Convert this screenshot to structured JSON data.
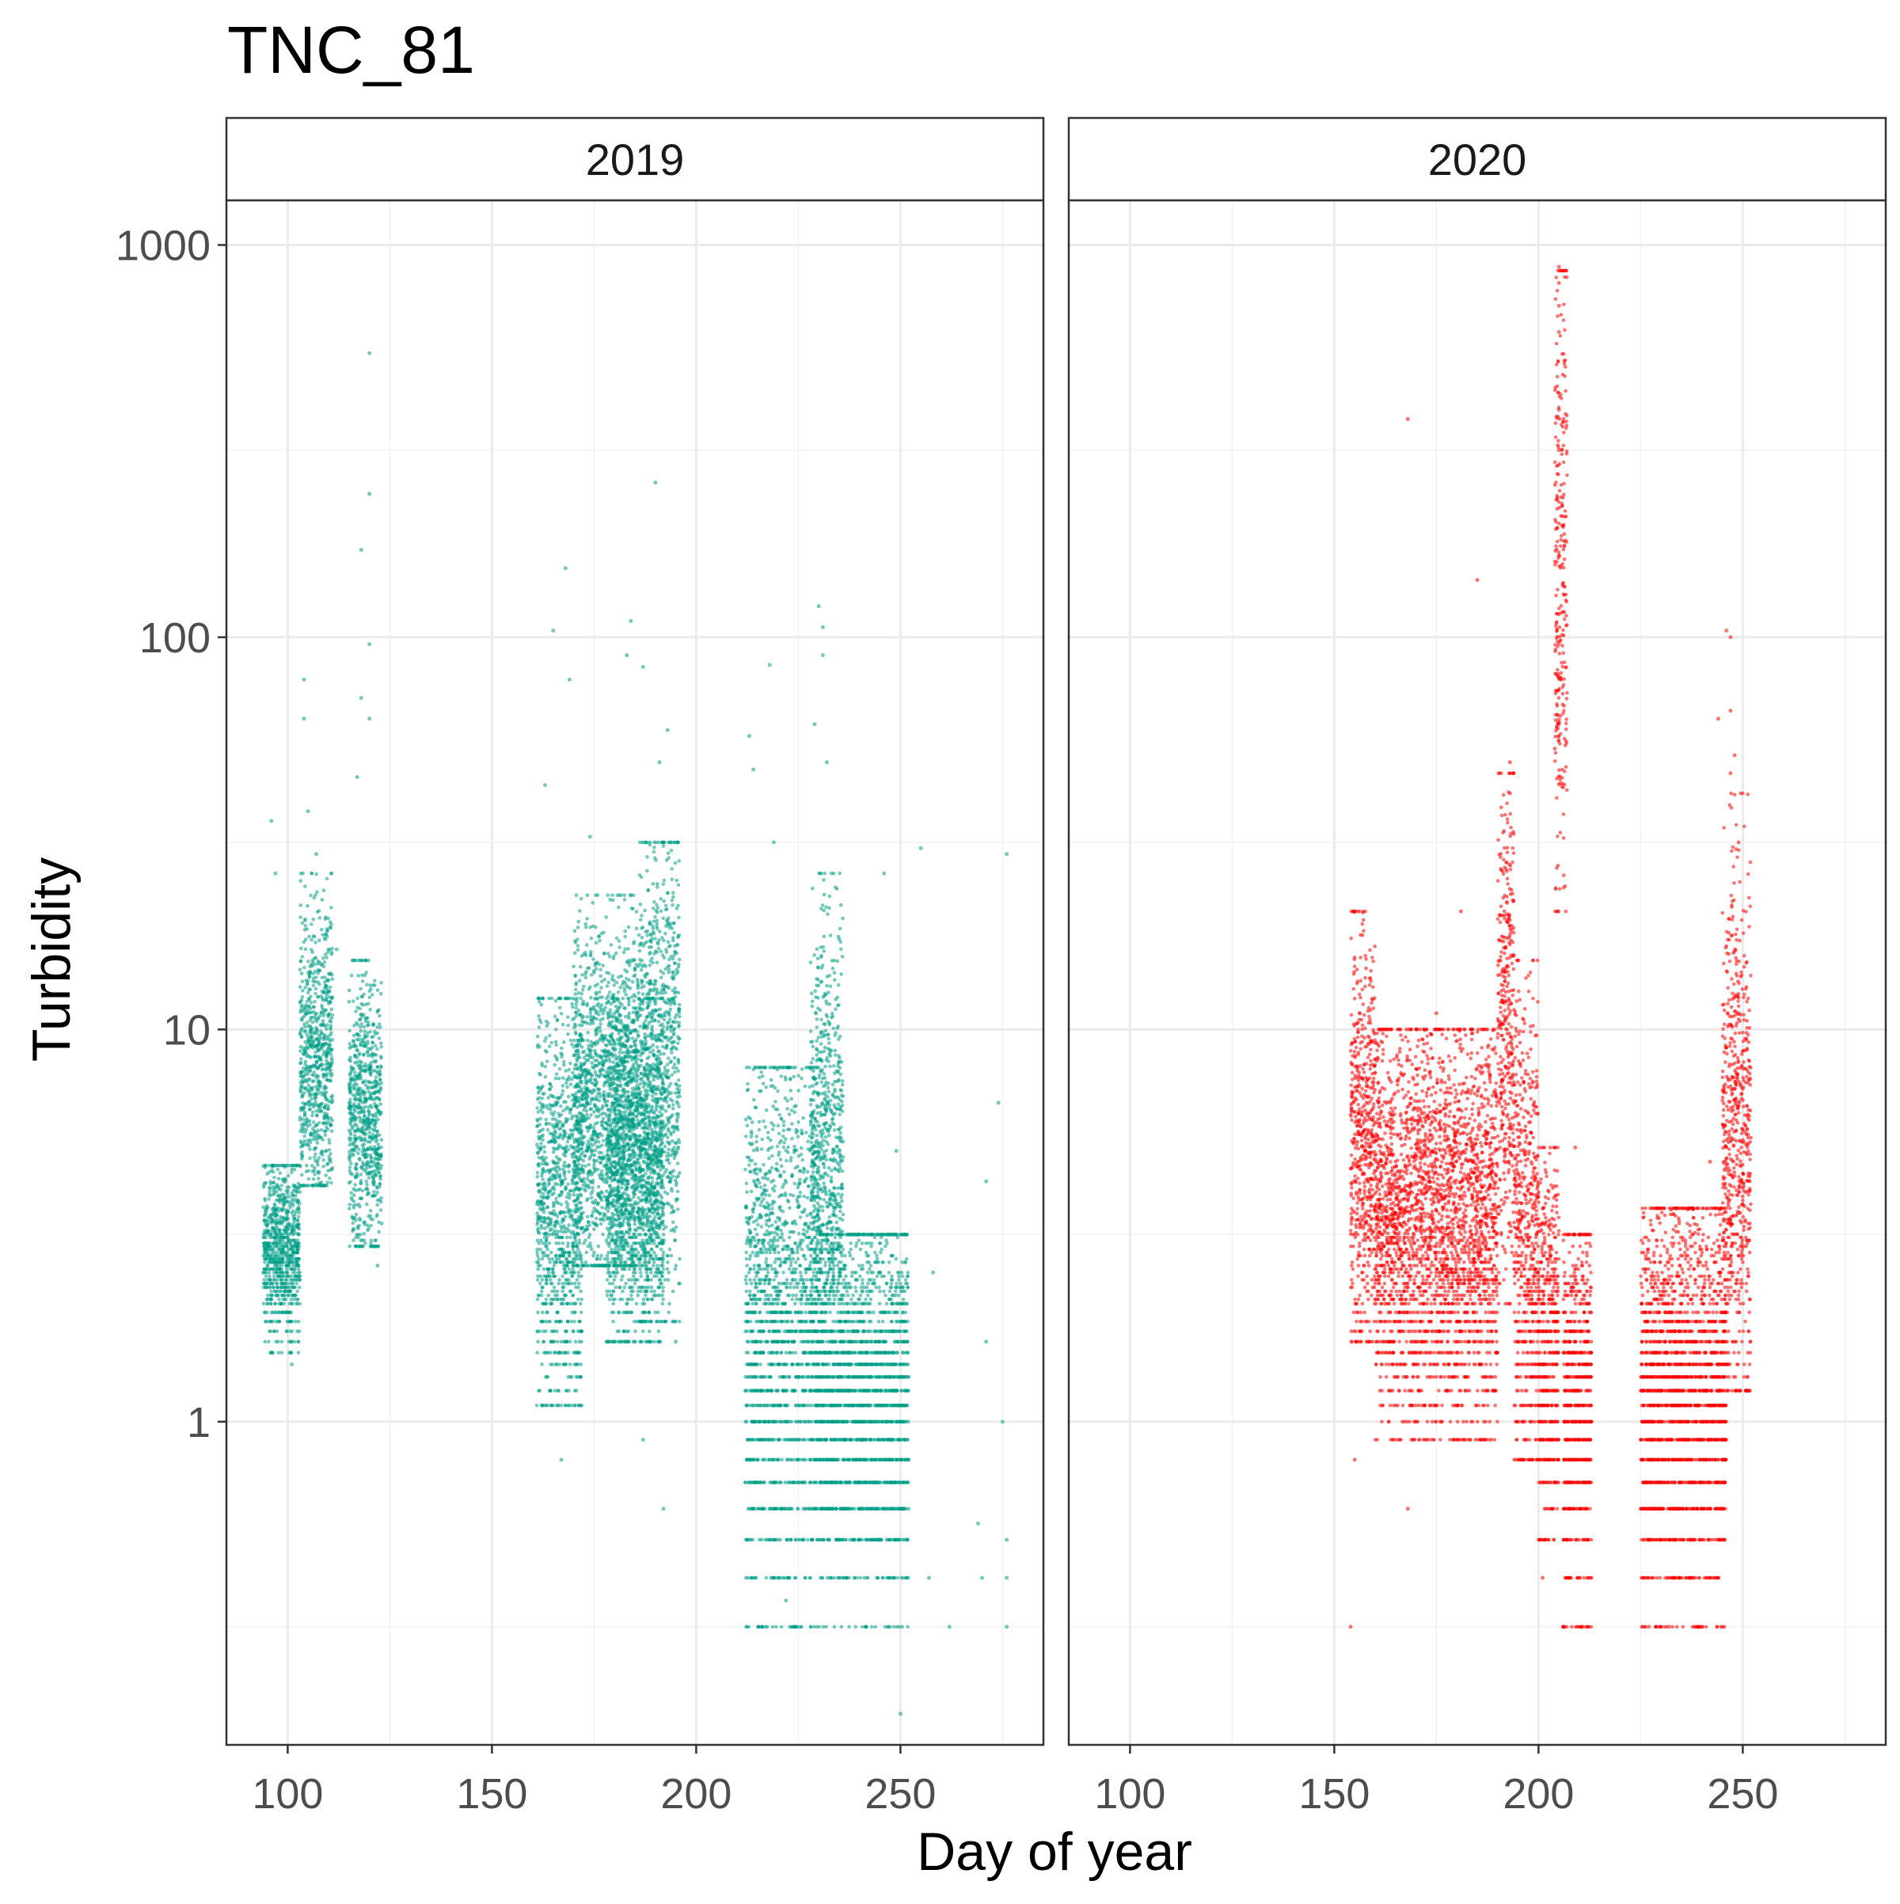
{
  "chart_data": {
    "type": "scatter",
    "title": "TNC_81",
    "xlabel": "Day of year",
    "ylabel": "Turbidity",
    "y_scale": "log10",
    "xlim": [
      85,
      285
    ],
    "ylim": [
      0.15,
      1300
    ],
    "x_ticks": [
      100,
      150,
      200,
      250
    ],
    "x_tick_labels": [
      "100",
      "150",
      "200",
      "250"
    ],
    "y_ticks": [
      1,
      10,
      100,
      1000
    ],
    "y_tick_labels": [
      "1",
      "10",
      "100",
      "1000"
    ],
    "grid": true,
    "legend": "none",
    "panels": [
      {
        "label": "2019",
        "color": "#009E86",
        "clusters": [
          {
            "x_range": [
              94,
              103
            ],
            "y_range": [
              1.5,
              4.5
            ],
            "center": 2.7
          },
          {
            "x_range": [
              103,
              111
            ],
            "y_range": [
              4.0,
              25
            ],
            "center": 8.5
          },
          {
            "x_range": [
              115,
              123
            ],
            "y_range": [
              2.8,
              15
            ],
            "center": 6.0
          },
          {
            "x_range": [
              161,
              172
            ],
            "y_range": [
              1.1,
              12
            ],
            "center": 3.5
          },
          {
            "x_range": [
              170,
              186
            ],
            "y_range": [
              2.5,
              22
            ],
            "center": 6.5
          },
          {
            "x_range": [
              178,
              192
            ],
            "y_range": [
              1.6,
              12
            ],
            "center": 4.2
          },
          {
            "x_range": [
              186,
              196
            ],
            "y_range": [
              1.8,
              30
            ],
            "center": 7.5
          },
          {
            "x_range": [
              212,
              230
            ],
            "y_range": [
              0.3,
              8
            ],
            "center": 1.8
          },
          {
            "x_range": [
              228,
              236
            ],
            "y_range": [
              1.2,
              25
            ],
            "center": 4.5
          },
          {
            "x_range": [
              230,
              252
            ],
            "y_range": [
              0.3,
              3
            ],
            "center": 1.2
          }
        ],
        "sparse_points": [
          [
            96,
            34
          ],
          [
            97,
            25
          ],
          [
            101,
            1.4
          ],
          [
            104,
            78
          ],
          [
            104,
            62
          ],
          [
            105,
            36
          ],
          [
            107,
            28
          ],
          [
            112,
            16
          ],
          [
            117,
            44
          ],
          [
            118,
            70
          ],
          [
            118,
            167
          ],
          [
            120,
            530
          ],
          [
            120,
            232
          ],
          [
            120,
            96
          ],
          [
            120,
            62
          ],
          [
            123,
            3.2
          ],
          [
            122,
            2.5
          ],
          [
            163,
            42
          ],
          [
            165,
            104
          ],
          [
            168,
            150
          ],
          [
            169,
            78
          ],
          [
            174,
            31
          ],
          [
            183,
            90
          ],
          [
            184,
            110
          ],
          [
            187,
            84
          ],
          [
            190,
            248
          ],
          [
            191,
            48
          ],
          [
            193,
            58
          ],
          [
            195,
            1.6
          ],
          [
            192,
            0.6
          ],
          [
            167,
            0.8
          ],
          [
            187,
            0.9
          ],
          [
            213,
            56
          ],
          [
            214,
            46
          ],
          [
            218,
            85
          ],
          [
            219,
            30
          ],
          [
            222,
            0.35
          ],
          [
            229,
            60
          ],
          [
            230,
            120
          ],
          [
            231,
            106
          ],
          [
            231,
            90
          ],
          [
            232,
            48
          ],
          [
            235,
            17
          ],
          [
            246,
            25
          ],
          [
            249,
            4.9
          ],
          [
            250,
            0.18
          ],
          [
            255,
            29
          ],
          [
            258,
            2.4
          ],
          [
            257,
            0.4
          ],
          [
            262,
            0.3
          ],
          [
            269,
            0.55
          ],
          [
            270,
            0.4
          ],
          [
            271,
            1.6
          ],
          [
            271,
            4.1
          ],
          [
            274,
            6.5
          ],
          [
            275,
            1.0
          ],
          [
            276,
            28
          ],
          [
            276,
            0.5
          ],
          [
            276,
            0.4
          ],
          [
            276,
            0.3
          ]
        ]
      },
      {
        "label": "2020",
        "color": "#FF0000",
        "clusters": [
          {
            "x_range": [
              154,
              160
            ],
            "y_range": [
              1.6,
              20
            ],
            "center": 5.0
          },
          {
            "x_range": [
              160,
              190
            ],
            "y_range": [
              0.9,
              10
            ],
            "center": 3.2
          },
          {
            "x_range": [
              190,
              194
            ],
            "y_range": [
              2.0,
              45
            ],
            "center": 10.0
          },
          {
            "x_range": [
              194,
              200
            ],
            "y_range": [
              0.8,
              15
            ],
            "center": 3.0
          },
          {
            "x_range": [
              200,
              205
            ],
            "y_range": [
              0.45,
              5
            ],
            "center": 1.6
          },
          {
            "x_range": [
              204,
              207
            ],
            "y_range": [
              20,
              860
            ],
            "center": 150
          },
          {
            "x_range": [
              206,
              213
            ],
            "y_range": [
              0.3,
              3
            ],
            "center": 1.1
          },
          {
            "x_range": [
              225,
              246
            ],
            "y_range": [
              0.3,
              3.5
            ],
            "center": 1.2
          },
          {
            "x_range": [
              245,
              252
            ],
            "y_range": [
              1.2,
              40
            ],
            "center": 5.0
          }
        ],
        "sparse_points": [
          [
            154,
            0.3
          ],
          [
            155,
            0.8
          ],
          [
            155,
            20
          ],
          [
            168,
            0.6
          ],
          [
            168,
            360
          ],
          [
            175,
            11
          ],
          [
            181,
            20
          ],
          [
            182,
            0.9
          ],
          [
            184,
            5
          ],
          [
            185,
            140
          ],
          [
            193,
            48
          ],
          [
            193,
            40
          ],
          [
            201,
            0.4
          ],
          [
            204,
            52
          ],
          [
            205,
            880
          ],
          [
            205,
            800
          ],
          [
            205,
            700
          ],
          [
            205,
            600
          ],
          [
            205,
            380
          ],
          [
            205,
            300
          ],
          [
            205,
            60
          ],
          [
            209,
            5
          ],
          [
            210,
            3
          ],
          [
            206,
            0.3
          ],
          [
            211,
            0.3
          ],
          [
            227,
            0.3
          ],
          [
            232,
            0.3
          ],
          [
            240,
            0.3
          ],
          [
            245,
            0.3
          ],
          [
            242,
            4.6
          ],
          [
            244,
            62
          ],
          [
            246,
            104
          ],
          [
            247,
            100
          ],
          [
            247,
            65
          ],
          [
            247,
            45
          ],
          [
            248,
            50
          ],
          [
            249,
            30
          ]
        ]
      }
    ]
  }
}
